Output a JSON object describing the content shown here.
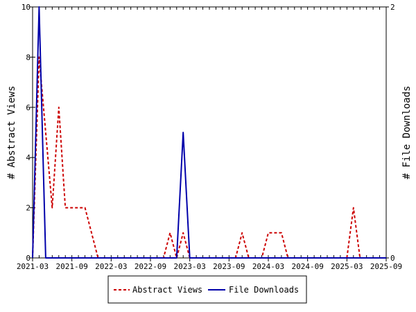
{
  "chart_data": {
    "type": "line",
    "title": "",
    "ylabel": "# Abstract Views",
    "y2label": "# File Downloads",
    "xlim": [
      "2021-03",
      "2025-09"
    ],
    "ylim": [
      0,
      10
    ],
    "y2lim": [
      0,
      2
    ],
    "yticks": [
      0,
      2,
      4,
      6,
      8,
      10
    ],
    "y2ticks": [
      0,
      2
    ],
    "xticks": [
      "2021-03",
      "2021-09",
      "2022-03",
      "2022-09",
      "2023-03",
      "2023-09",
      "2024-03",
      "2024-09",
      "2025-03",
      "2025-09"
    ],
    "legend_position": "bottom",
    "series": [
      {
        "name": "Abstract Views",
        "axis": "left",
        "style": "dashed",
        "color": "#cc0000",
        "points": [
          [
            "2021-03",
            0
          ],
          [
            "2021-04",
            8
          ],
          [
            "2021-05",
            5
          ],
          [
            "2021-06",
            2
          ],
          [
            "2021-07",
            6
          ],
          [
            "2021-08",
            2
          ],
          [
            "2021-09",
            2
          ],
          [
            "2021-10",
            2
          ],
          [
            "2021-11",
            2
          ],
          [
            "2021-12",
            1
          ],
          [
            "2022-01",
            0
          ],
          [
            "2022-02",
            0
          ],
          [
            "2022-03",
            0
          ],
          [
            "2022-04",
            0
          ],
          [
            "2022-05",
            0
          ],
          [
            "2022-06",
            0
          ],
          [
            "2022-07",
            0
          ],
          [
            "2022-08",
            0
          ],
          [
            "2022-09",
            0
          ],
          [
            "2022-10",
            0
          ],
          [
            "2022-11",
            0
          ],
          [
            "2022-12",
            1
          ],
          [
            "2023-01",
            0
          ],
          [
            "2023-02",
            1
          ],
          [
            "2023-03",
            0
          ],
          [
            "2023-04",
            0
          ],
          [
            "2023-05",
            0
          ],
          [
            "2023-06",
            0
          ],
          [
            "2023-07",
            0
          ],
          [
            "2023-08",
            0
          ],
          [
            "2023-09",
            0
          ],
          [
            "2023-10",
            0
          ],
          [
            "2023-11",
            1
          ],
          [
            "2023-12",
            0
          ],
          [
            "2024-01",
            0
          ],
          [
            "2024-02",
            0
          ],
          [
            "2024-03",
            1
          ],
          [
            "2024-04",
            1
          ],
          [
            "2024-05",
            1
          ],
          [
            "2024-06",
            0
          ],
          [
            "2024-07",
            0
          ],
          [
            "2024-08",
            0
          ],
          [
            "2024-09",
            0
          ],
          [
            "2024-10",
            0
          ],
          [
            "2024-11",
            0
          ],
          [
            "2024-12",
            0
          ],
          [
            "2025-01",
            0
          ],
          [
            "2025-02",
            0
          ],
          [
            "2025-03",
            0
          ],
          [
            "2025-04",
            2
          ],
          [
            "2025-05",
            0
          ],
          [
            "2025-06",
            0
          ],
          [
            "2025-07",
            0
          ],
          [
            "2025-08",
            0
          ],
          [
            "2025-09",
            0
          ]
        ]
      },
      {
        "name": "File Downloads",
        "axis": "right",
        "style": "solid",
        "color": "#0000aa",
        "points": [
          [
            "2021-03",
            0
          ],
          [
            "2021-04",
            2
          ],
          [
            "2021-05",
            0
          ],
          [
            "2021-06",
            0
          ],
          [
            "2021-07",
            0
          ],
          [
            "2021-08",
            0
          ],
          [
            "2021-09",
            0
          ],
          [
            "2021-10",
            0
          ],
          [
            "2021-11",
            0
          ],
          [
            "2021-12",
            0
          ],
          [
            "2022-01",
            0
          ],
          [
            "2022-02",
            0
          ],
          [
            "2022-03",
            0
          ],
          [
            "2022-04",
            0
          ],
          [
            "2022-05",
            0
          ],
          [
            "2022-06",
            0
          ],
          [
            "2022-07",
            0
          ],
          [
            "2022-08",
            0
          ],
          [
            "2022-09",
            0
          ],
          [
            "2022-10",
            0
          ],
          [
            "2022-11",
            0
          ],
          [
            "2022-12",
            0
          ],
          [
            "2023-01",
            0
          ],
          [
            "2023-02",
            1
          ],
          [
            "2023-03",
            0
          ],
          [
            "2023-04",
            0
          ],
          [
            "2023-05",
            0
          ],
          [
            "2023-06",
            0
          ],
          [
            "2023-07",
            0
          ],
          [
            "2023-08",
            0
          ],
          [
            "2023-09",
            0
          ],
          [
            "2023-10",
            0
          ],
          [
            "2023-11",
            0
          ],
          [
            "2023-12",
            0
          ],
          [
            "2024-01",
            0
          ],
          [
            "2024-02",
            0
          ],
          [
            "2024-03",
            0
          ],
          [
            "2024-04",
            0
          ],
          [
            "2024-05",
            0
          ],
          [
            "2024-06",
            0
          ],
          [
            "2024-07",
            0
          ],
          [
            "2024-08",
            0
          ],
          [
            "2024-09",
            0
          ],
          [
            "2024-10",
            0
          ],
          [
            "2024-11",
            0
          ],
          [
            "2024-12",
            0
          ],
          [
            "2025-01",
            0
          ],
          [
            "2025-02",
            0
          ],
          [
            "2025-03",
            0
          ],
          [
            "2025-04",
            0
          ],
          [
            "2025-05",
            0
          ],
          [
            "2025-06",
            0
          ],
          [
            "2025-07",
            0
          ],
          [
            "2025-08",
            0
          ],
          [
            "2025-09",
            0
          ]
        ]
      }
    ]
  }
}
